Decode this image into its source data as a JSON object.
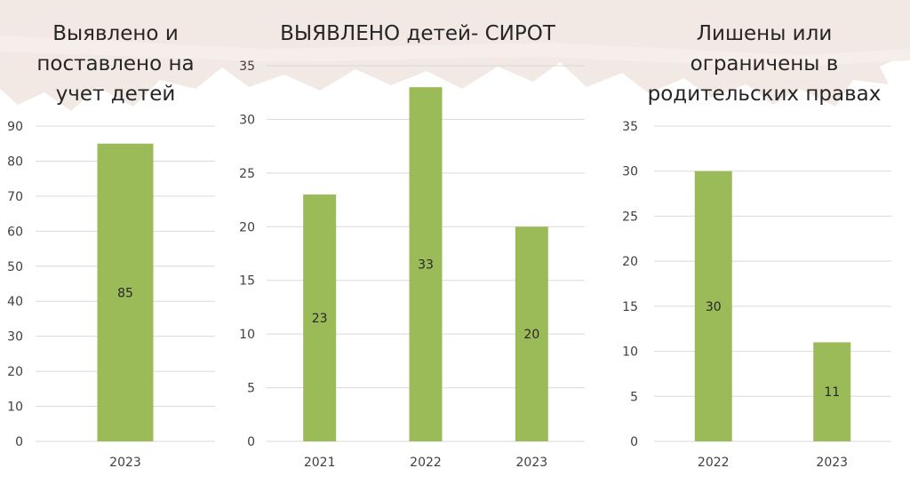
{
  "colors": {
    "bar": "#9BBB59",
    "grid": "#d9d9d9",
    "axis_text": "#404040",
    "brush": "#f2e8e4"
  },
  "chart_data": [
    {
      "type": "bar",
      "title": "Выявлено и\nпоставлено на\nучет детей",
      "categories": [
        "2023"
      ],
      "values": [
        85
      ],
      "ylim": [
        0,
        90
      ],
      "yticks": [
        0,
        10,
        20,
        30,
        40,
        50,
        60,
        70,
        80,
        90
      ],
      "grid": true,
      "data_labels": true
    },
    {
      "type": "bar",
      "title": "ВЫЯВЛЕНО детей- СИРОТ",
      "categories": [
        "2021",
        "2022",
        "2023"
      ],
      "values": [
        23,
        33,
        20
      ],
      "ylim": [
        0,
        35
      ],
      "yticks": [
        0,
        5,
        10,
        15,
        20,
        25,
        30,
        35
      ],
      "grid": true,
      "data_labels": true
    },
    {
      "type": "bar",
      "title": "Лишены или\nограничены в\nродительских правах",
      "categories": [
        "2022",
        "2023"
      ],
      "values": [
        30,
        11
      ],
      "ylim": [
        0,
        35
      ],
      "yticks": [
        0,
        5,
        10,
        15,
        20,
        25,
        30,
        35
      ],
      "grid": true,
      "data_labels": true
    }
  ]
}
